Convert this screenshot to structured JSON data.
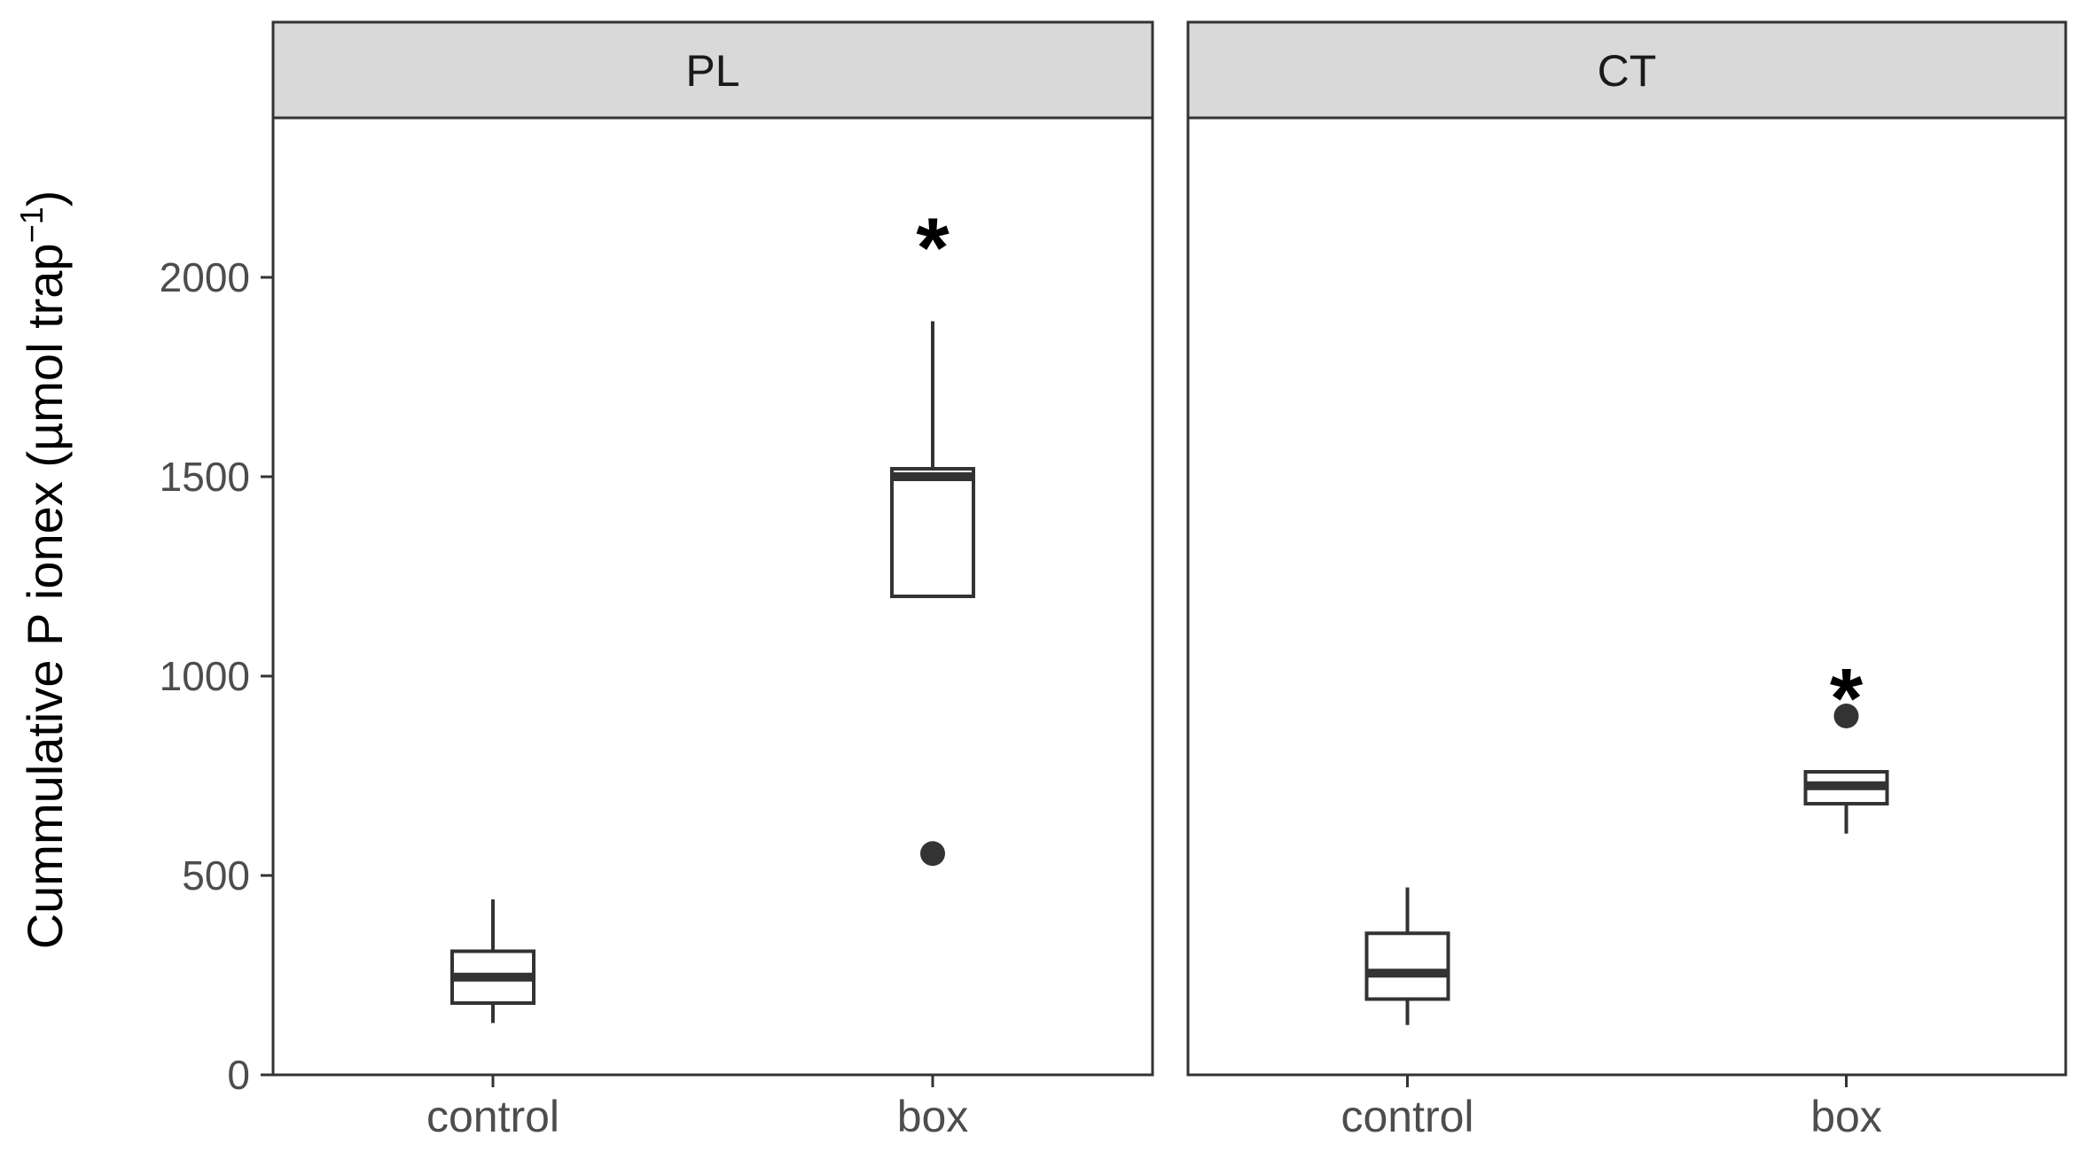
{
  "chart_data": {
    "type": "box",
    "ylabel": "Cummulative P ionex (µmol trap",
    "ylabel_superscript": "−1",
    "ylabel_close": ")",
    "ylim": [
      0,
      2400
    ],
    "yticks": [
      0,
      500,
      1000,
      1500,
      2000
    ],
    "ytick_labels": [
      "0",
      "500",
      "1000",
      "1500",
      "2000"
    ],
    "categories": [
      "control",
      "box"
    ],
    "panels": [
      {
        "name": "PL",
        "boxes": [
          {
            "category": "control",
            "min": 130,
            "q1": 180,
            "median": 245,
            "q3": 310,
            "max": 440,
            "outliers": [],
            "significance": ""
          },
          {
            "category": "box",
            "min": 1200,
            "q1": 1200,
            "median": 1500,
            "q3": 1520,
            "max": 1890,
            "outliers": [
              555
            ],
            "significance": "*"
          }
        ]
      },
      {
        "name": "CT",
        "boxes": [
          {
            "category": "control",
            "min": 125,
            "q1": 190,
            "median": 255,
            "q3": 355,
            "max": 470,
            "outliers": [],
            "significance": ""
          },
          {
            "category": "box",
            "min": 605,
            "q1": 680,
            "median": 725,
            "q3": 760,
            "max": 760,
            "outliers": [
              900
            ],
            "significance": "*"
          }
        ]
      }
    ],
    "grid": false,
    "colors": {
      "box_line": "#333333",
      "box_fill": "#ffffff",
      "strip_fill": "#d9d9d9",
      "frame": "#333333",
      "outlier": "#333333"
    }
  }
}
